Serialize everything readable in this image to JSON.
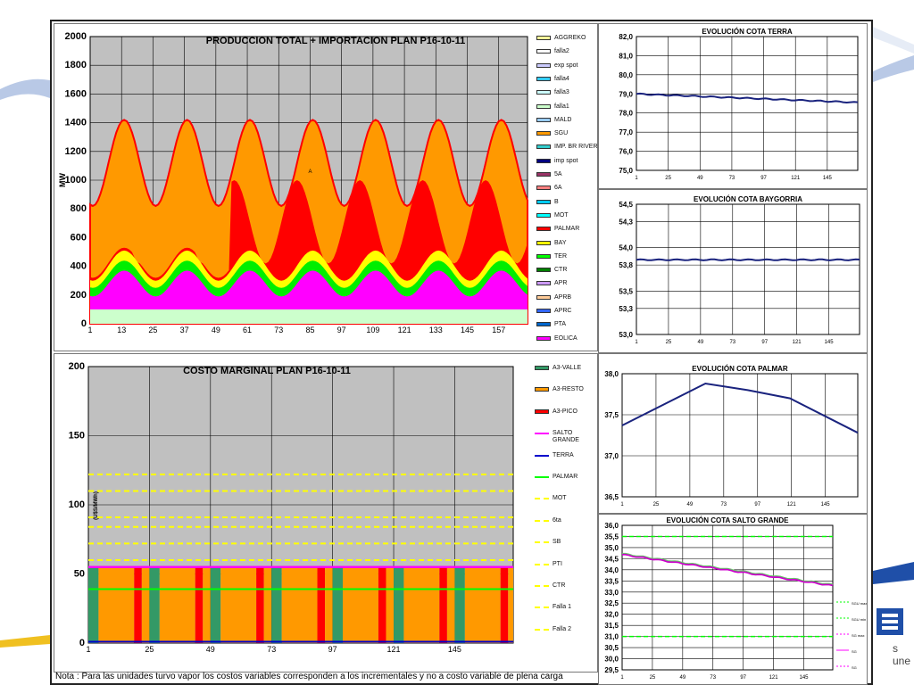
{
  "footer": {
    "note": "Nota : Para las unidades turvo vapor los costos variables corresponden a los incrementales y no a costo variable de plena carga",
    "logo_text": "s une"
  },
  "colors": {
    "plot_bg": "#c0c0c0",
    "grid": "#000000",
    "navy": "#1a237e",
    "orange": "#ff9900",
    "red": "#ff0000",
    "green": "#00dd00",
    "yellow": "#ffff00",
    "magenta": "#ff00ff",
    "mint": "#ccffcc",
    "teal": "#339966",
    "dashed_yellow": "#ffff00"
  },
  "chart_data": [
    {
      "id": "produccion",
      "type": "area",
      "title": "PRODUCCION TOTAL + IMPORTACION PLAN P16-10-11",
      "ylabel": "MW",
      "annotation": "A",
      "ylim": [
        0,
        2000
      ],
      "yticks": [
        0,
        200,
        400,
        600,
        800,
        1000,
        1200,
        1400,
        1600,
        1800,
        2000
      ],
      "xlim": [
        1,
        168
      ],
      "xticks": [
        1,
        13,
        25,
        37,
        49,
        61,
        73,
        85,
        97,
        109,
        121,
        133,
        145,
        157
      ],
      "legend": [
        {
          "name": "AGGREKO",
          "color": "#ffff99"
        },
        {
          "name": "falla2",
          "color": "#ffffff"
        },
        {
          "name": "exp spot",
          "color": "#ccccff"
        },
        {
          "name": "falla4",
          "color": "#33ccff"
        },
        {
          "name": "falla3",
          "color": "#ccffff"
        },
        {
          "name": "falla1",
          "color": "#ccffcc"
        },
        {
          "name": "MALD",
          "color": "#99ccff"
        },
        {
          "name": "SGU",
          "color": "#ff9900"
        },
        {
          "name": "IMP. BR RIVERA",
          "color": "#33cccc"
        },
        {
          "name": "imp spot",
          "color": "#000080"
        },
        {
          "name": "5A",
          "color": "#993366"
        },
        {
          "name": "6A",
          "color": "#ff8080"
        },
        {
          "name": "B",
          "color": "#00ccff"
        },
        {
          "name": "MOT",
          "color": "#00ffff"
        },
        {
          "name": "PALMAR",
          "color": "#ff0000"
        },
        {
          "name": "BAY",
          "color": "#ffff00"
        },
        {
          "name": "TER",
          "color": "#00ff00"
        },
        {
          "name": "CTR",
          "color": "#008000"
        },
        {
          "name": "APR",
          "color": "#cc99ff"
        },
        {
          "name": "APRB",
          "color": "#ffcc99"
        },
        {
          "name": "APRC",
          "color": "#3366ff"
        },
        {
          "name": "PTA",
          "color": "#0066cc"
        },
        {
          "name": "EOLICA",
          "color": "#ff00ff"
        }
      ],
      "series": [
        {
          "name": "EOLICA",
          "min": 100,
          "max": 100
        },
        {
          "name": "falla1",
          "min": 100,
          "max": 100
        },
        {
          "name": "magenta_top",
          "min": 190,
          "max": 370
        },
        {
          "name": "green_top",
          "min": 250,
          "max": 440
        },
        {
          "name": "yellow_top",
          "min": 300,
          "max": 510
        },
        {
          "name": "PALMAR_top",
          "min": 420,
          "max": 1000
        },
        {
          "name": "total",
          "min": 820,
          "max": 1420
        }
      ]
    },
    {
      "id": "costo",
      "type": "bar",
      "title": "COSTO MARGINAL PLAN P16-10-11",
      "ylabel": "(U$S/MWh)",
      "ylim": [
        0,
        200
      ],
      "yticks": [
        0,
        50,
        100,
        150,
        200
      ],
      "xlim": [
        1,
        168
      ],
      "xticks": [
        1,
        25,
        49,
        73,
        97,
        121,
        145
      ],
      "marginal_cost": 55,
      "dashed_levels": [
        60,
        72,
        84,
        91,
        110,
        122
      ],
      "green_level": 39,
      "legend": [
        {
          "name": "A3-VALLE",
          "color": "#339966",
          "kind": "box"
        },
        {
          "name": "A3-RESTO",
          "color": "#ff9900",
          "kind": "box"
        },
        {
          "name": "A3-PICO",
          "color": "#ff0000",
          "kind": "box"
        },
        {
          "name": "SALTO GRANDE",
          "color": "#ff00ff",
          "kind": "line"
        },
        {
          "name": "TERRA",
          "color": "#0000cc",
          "kind": "line"
        },
        {
          "name": "PALMAR",
          "color": "#00ff00",
          "kind": "line"
        },
        {
          "name": "MOT",
          "color": "#ffff00",
          "kind": "dash"
        },
        {
          "name": "6ta",
          "color": "#ffff00",
          "kind": "dash"
        },
        {
          "name": "SB",
          "color": "#ffff00",
          "kind": "dash"
        },
        {
          "name": "PTI",
          "color": "#ffff00",
          "kind": "dash"
        },
        {
          "name": "CTR",
          "color": "#ffff00",
          "kind": "dash"
        },
        {
          "name": "Falla 1",
          "color": "#ffff00",
          "kind": "dash"
        },
        {
          "name": "Falla 2",
          "color": "#ffff00",
          "kind": "dash"
        }
      ]
    },
    {
      "id": "terra",
      "type": "line",
      "title": "EVOLUCIÓN COTA TERRA",
      "ylim": [
        75.0,
        82.0
      ],
      "yticks": [
        "75,0",
        "76,0",
        "77,0",
        "78,0",
        "79,0",
        "80,0",
        "81,0",
        "82,0"
      ],
      "xlim": [
        1,
        168
      ],
      "xticks": [
        1,
        25,
        49,
        73,
        97,
        121,
        145
      ],
      "x": [
        1,
        168
      ],
      "y": [
        79.0,
        78.55
      ]
    },
    {
      "id": "baygorria",
      "type": "line",
      "title": "EVOLUCIÓN COTA BAYGORRIA",
      "ylim": [
        53.0,
        54.5
      ],
      "yticks": [
        "53,0",
        "53,3",
        "53,5",
        "53,8",
        "54,0",
        "54,3",
        "54,5"
      ],
      "xlim": [
        1,
        168
      ],
      "xticks": [
        1,
        25,
        49,
        73,
        97,
        121,
        145
      ],
      "x": [
        1,
        168
      ],
      "y": [
        53.86,
        53.86
      ]
    },
    {
      "id": "palmar",
      "type": "line",
      "title": "EVOLUCIÓN COTA PALMAR",
      "ylim": [
        36.5,
        38.0
      ],
      "yticks": [
        "36,5",
        "37,0",
        "37,5",
        "38,0"
      ],
      "xlim": [
        1,
        168
      ],
      "xticks": [
        1,
        25,
        49,
        73,
        97,
        121,
        145
      ],
      "x": [
        1,
        60,
        90,
        120,
        168
      ],
      "y": [
        37.37,
        37.88,
        37.8,
        37.7,
        37.28
      ]
    },
    {
      "id": "salto",
      "type": "line",
      "title": "EVOLUCIÓN COTA SALTO GRANDE",
      "ylim": [
        29.5,
        36.0
      ],
      "yticks": [
        "29,5",
        "30,0",
        "30,5",
        "31,0",
        "31,5",
        "32,0",
        "32,5",
        "33,0",
        "33,5",
        "34,0",
        "34,5",
        "35,0",
        "35,5",
        "36,0"
      ],
      "xlim": [
        1,
        168
      ],
      "xticks": [
        1,
        25,
        49,
        73,
        97,
        121,
        145
      ],
      "x": [
        1,
        168
      ],
      "y": [
        34.7,
        33.3
      ],
      "limit_lines": [
        35.5,
        31.0
      ],
      "legend": [
        "SGU max",
        "SGU min",
        "SG max",
        "SG",
        "SG"
      ]
    }
  ]
}
